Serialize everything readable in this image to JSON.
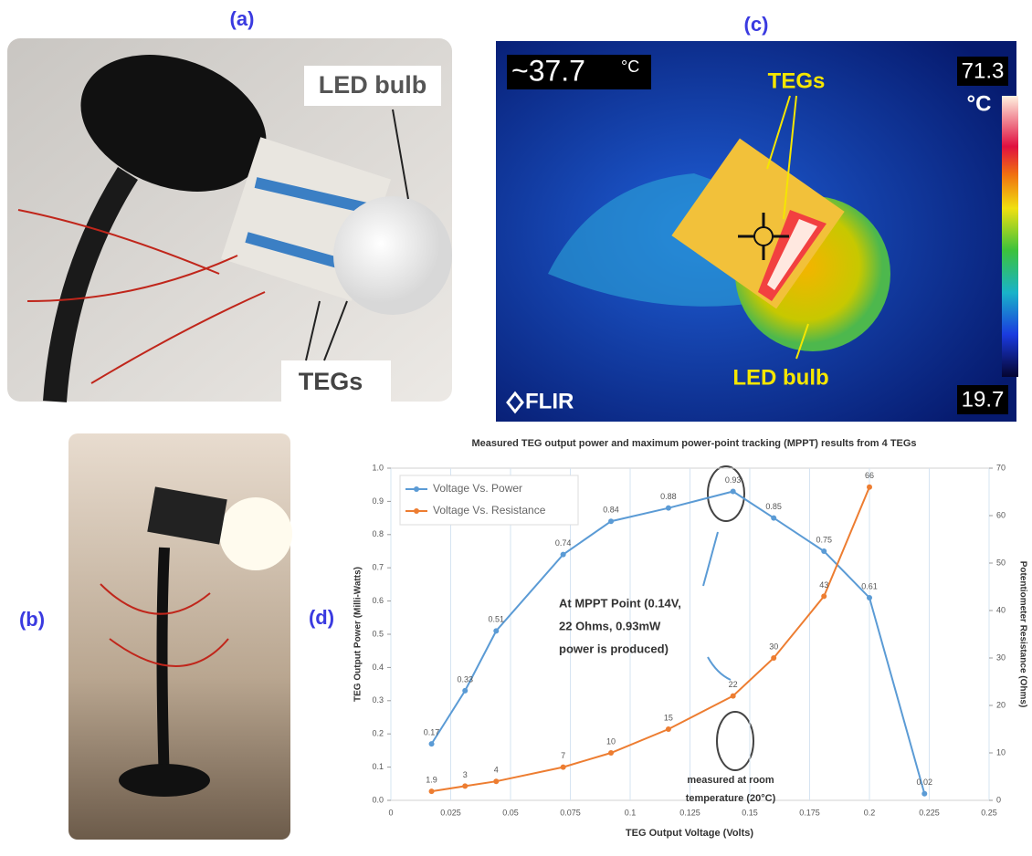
{
  "panels": {
    "a": {
      "label": "(a)",
      "callouts": [
        "LED bulb",
        "TEGs"
      ]
    },
    "b": {
      "label": "(b)"
    },
    "c": {
      "label": "(c)",
      "spot_temp": "~37.7",
      "spot_unit": "°C",
      "scale_max": "71.3",
      "scale_unit": "°C",
      "scale_min": "19.7",
      "brand": "FLIR",
      "callouts": [
        "TEGs",
        "LED bulb"
      ]
    },
    "d": {
      "label": "(d)"
    }
  },
  "chart_data": {
    "type": "line",
    "title": "Measured TEG output power and maximum power-point tracking (MPPT) results from 4 TEGs",
    "x_label": "TEG Output Voltage (Volts)",
    "y_label": "TEG Output Power (Milli-Watts)",
    "y2_label": "Potentiometer Resistance (Ohms)",
    "x": [
      0.017,
      0.031,
      0.044,
      0.072,
      0.092,
      0.116,
      0.143,
      0.16,
      0.181,
      0.2,
      0.223
    ],
    "series": [
      {
        "name": "Voltage Vs. Power",
        "color": "#5b9bd5",
        "values": [
          0.17,
          0.33,
          0.51,
          0.74,
          0.84,
          0.88,
          0.93,
          0.85,
          0.75,
          0.61,
          0.02
        ]
      },
      {
        "name": "Voltage Vs. Resistance",
        "color": "#ed7d31",
        "axis": "y2",
        "values": [
          1.9,
          3,
          4,
          7,
          10,
          15,
          22,
          30,
          43,
          66,
          null
        ]
      }
    ],
    "xlim": [
      0,
      0.25
    ],
    "xticks": [
      0,
      0.025,
      0.05,
      0.075,
      0.1,
      0.125,
      0.15,
      0.175,
      0.2,
      0.225,
      0.25
    ],
    "ylim": [
      0,
      1
    ],
    "yticks": [
      {
        "value": 0,
        "label": "0.0"
      },
      0.1,
      0.2,
      0.3,
      0.4,
      0.5,
      0.6,
      0.7,
      0.8,
      0.9,
      {
        "value": 1,
        "label": "1.0"
      }
    ],
    "y2lim": [
      0,
      70
    ],
    "y2ticks": [
      0,
      10,
      20,
      30,
      40,
      50,
      60,
      70
    ],
    "grid": true,
    "legend": "upper left",
    "annotations": [
      [
        "At MPPT Point (0.14V,",
        "22 Ohms, 0.93mW",
        "power is produced)"
      ],
      [
        "measured at room",
        "temperature (20°C)"
      ]
    ]
  }
}
